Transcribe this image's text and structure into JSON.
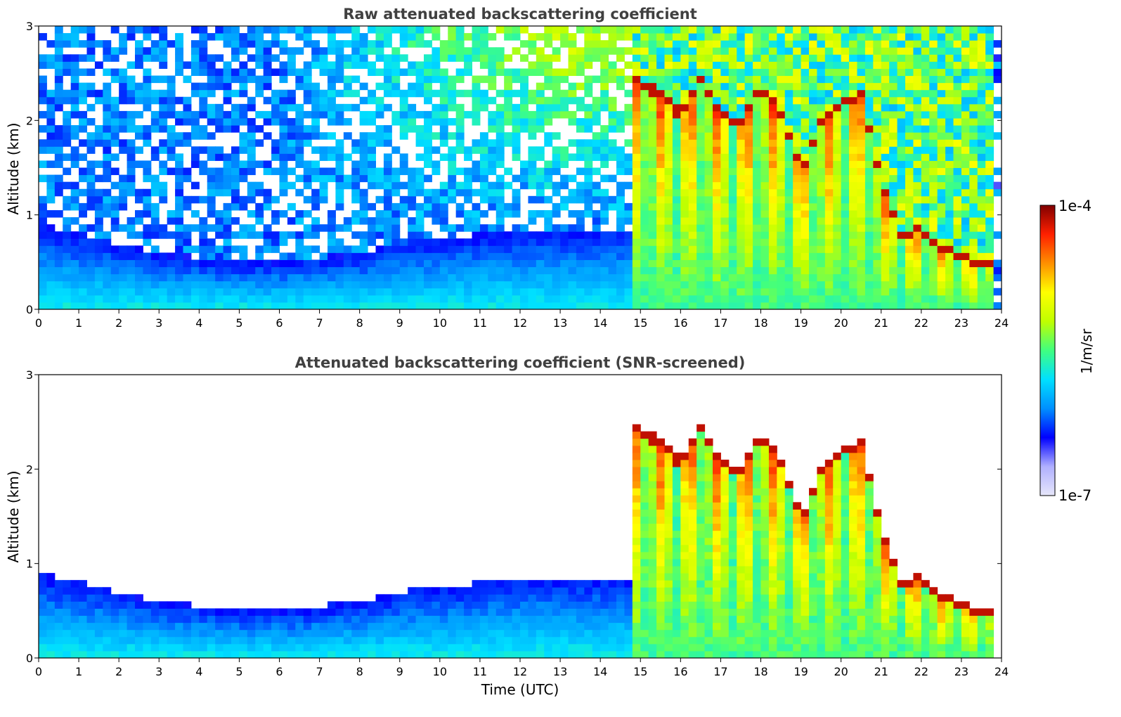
{
  "chart_data": [
    {
      "type": "heatmap",
      "title": "Raw attenuated backscattering coefficient",
      "xlabel": "",
      "ylabel": "Altitude (km)",
      "xlim": [
        0,
        24
      ],
      "ylim": [
        0,
        3
      ],
      "xticks": [
        "0",
        "1",
        "2",
        "3",
        "4",
        "5",
        "6",
        "7",
        "8",
        "9",
        "10",
        "11",
        "12",
        "13",
        "14",
        "15",
        "16",
        "17",
        "18",
        "19",
        "20",
        "21",
        "22",
        "23",
        "24"
      ],
      "yticks": [
        "0",
        "1",
        "2",
        "3"
      ],
      "cloud_top_km": [
        {
          "t": 14.9,
          "top": 2.5
        },
        {
          "t": 15.5,
          "top": 2.3
        },
        {
          "t": 16.0,
          "top": 2.1
        },
        {
          "t": 16.5,
          "top": 2.5
        },
        {
          "t": 17.0,
          "top": 2.1
        },
        {
          "t": 17.5,
          "top": 2.0
        },
        {
          "t": 18.0,
          "top": 2.4
        },
        {
          "t": 18.5,
          "top": 2.1
        },
        {
          "t": 19.0,
          "top": 1.5
        },
        {
          "t": 19.5,
          "top": 2.0
        },
        {
          "t": 20.0,
          "top": 2.2
        },
        {
          "t": 20.5,
          "top": 2.3
        },
        {
          "t": 21.0,
          "top": 1.4
        },
        {
          "t": 21.5,
          "top": 0.8
        },
        {
          "t": 22.0,
          "top": 0.9
        },
        {
          "t": 22.5,
          "top": 0.7
        },
        {
          "t": 23.0,
          "top": 0.6
        },
        {
          "t": 23.8,
          "top": 0.5
        }
      ],
      "boundary_layer_top_km": [
        {
          "t": 0,
          "top": 0.9
        },
        {
          "t": 1,
          "top": 0.8
        },
        {
          "t": 2,
          "top": 0.7
        },
        {
          "t": 3,
          "top": 0.6
        },
        {
          "t": 4,
          "top": 0.55
        },
        {
          "t": 5,
          "top": 0.5
        },
        {
          "t": 6,
          "top": 0.5
        },
        {
          "t": 7,
          "top": 0.55
        },
        {
          "t": 8,
          "top": 0.6
        },
        {
          "t": 9,
          "top": 0.7
        },
        {
          "t": 10,
          "top": 0.75
        },
        {
          "t": 11,
          "top": 0.8
        },
        {
          "t": 12,
          "top": 0.85
        },
        {
          "t": 13,
          "top": 0.85
        },
        {
          "t": 14,
          "top": 0.85
        },
        {
          "t": 15,
          "top": 0.85
        }
      ]
    },
    {
      "type": "heatmap",
      "title": "Attenuated backscattering coefficient (SNR-screened)",
      "xlabel": "Time (UTC)",
      "ylabel": "Altitude (km)",
      "xlim": [
        0,
        24
      ],
      "ylim": [
        0,
        3
      ],
      "xticks": [
        "0",
        "1",
        "2",
        "3",
        "4",
        "5",
        "6",
        "7",
        "8",
        "9",
        "10",
        "11",
        "12",
        "13",
        "14",
        "15",
        "16",
        "17",
        "18",
        "19",
        "20",
        "21",
        "22",
        "23",
        "24"
      ],
      "yticks": [
        "0",
        "1",
        "2",
        "3"
      ]
    }
  ],
  "colorbar": {
    "label": "1/m/sr",
    "max_label": "1e-4",
    "min_label": "1e-7",
    "colors": [
      "#e6e6fa",
      "#b0b0ff",
      "#0000ff",
      "#0090ff",
      "#00e0ff",
      "#40ff80",
      "#c0ff00",
      "#ffff00",
      "#ff9000",
      "#ff2000",
      "#800000"
    ]
  }
}
